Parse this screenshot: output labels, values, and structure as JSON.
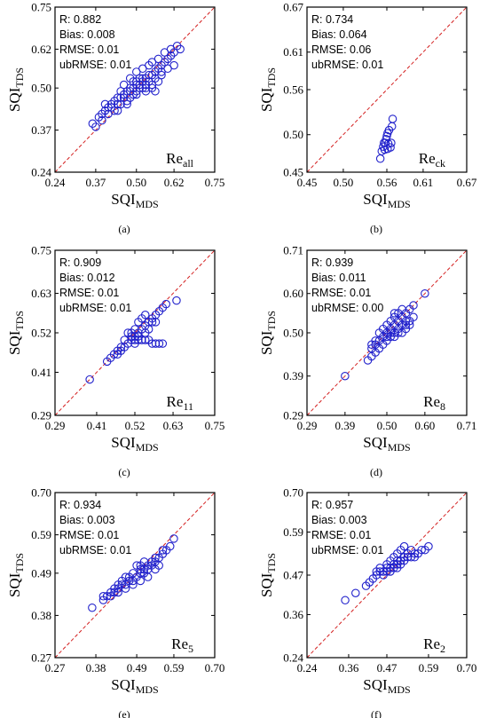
{
  "chart_data": [
    {
      "type": "scatter",
      "panel": "(a)",
      "xlabel": {
        "main": "SQI",
        "sub": "MDS"
      },
      "ylabel": {
        "main": "SQI",
        "sub": "TDS"
      },
      "region": {
        "main": "Re",
        "sub": "all"
      },
      "ticks": [
        0.24,
        0.37,
        0.5,
        0.62,
        0.75
      ],
      "tick_labels": [
        "0.24",
        "0.37",
        "0.50",
        "0.62",
        "0.75"
      ],
      "lim": [
        0.24,
        0.75
      ],
      "stats": [
        "R: 0.882",
        "Bias: 0.008",
        "RMSE: 0.01",
        "ubRMSE: 0.01"
      ],
      "points": [
        [
          0.36,
          0.39
        ],
        [
          0.38,
          0.41
        ],
        [
          0.39,
          0.42
        ],
        [
          0.4,
          0.43
        ],
        [
          0.41,
          0.44
        ],
        [
          0.42,
          0.45
        ],
        [
          0.43,
          0.46
        ],
        [
          0.44,
          0.47
        ],
        [
          0.45,
          0.47
        ],
        [
          0.46,
          0.48
        ],
        [
          0.47,
          0.49
        ],
        [
          0.48,
          0.5
        ],
        [
          0.49,
          0.5
        ],
        [
          0.5,
          0.51
        ],
        [
          0.51,
          0.51
        ],
        [
          0.52,
          0.52
        ],
        [
          0.53,
          0.53
        ],
        [
          0.54,
          0.54
        ],
        [
          0.55,
          0.54
        ],
        [
          0.56,
          0.55
        ],
        [
          0.57,
          0.56
        ],
        [
          0.58,
          0.57
        ],
        [
          0.59,
          0.58
        ],
        [
          0.6,
          0.59
        ],
        [
          0.61,
          0.6
        ],
        [
          0.62,
          0.61
        ],
        [
          0.64,
          0.62
        ],
        [
          0.4,
          0.45
        ],
        [
          0.42,
          0.44
        ],
        [
          0.44,
          0.45
        ],
        [
          0.45,
          0.49
        ],
        [
          0.47,
          0.46
        ],
        [
          0.48,
          0.47
        ],
        [
          0.49,
          0.48
        ],
        [
          0.5,
          0.49
        ],
        [
          0.51,
          0.53
        ],
        [
          0.52,
          0.5
        ],
        [
          0.53,
          0.51
        ],
        [
          0.54,
          0.52
        ],
        [
          0.55,
          0.51
        ],
        [
          0.56,
          0.53
        ],
        [
          0.57,
          0.52
        ],
        [
          0.58,
          0.54
        ],
        [
          0.6,
          0.56
        ],
        [
          0.62,
          0.57
        ],
        [
          0.46,
          0.51
        ],
        [
          0.48,
          0.53
        ],
        [
          0.5,
          0.55
        ],
        [
          0.52,
          0.56
        ],
        [
          0.54,
          0.57
        ],
        [
          0.55,
          0.58
        ],
        [
          0.57,
          0.59
        ],
        [
          0.59,
          0.61
        ],
        [
          0.61,
          0.62
        ],
        [
          0.37,
          0.38
        ],
        [
          0.39,
          0.4
        ],
        [
          0.43,
          0.43
        ],
        [
          0.44,
          0.43
        ],
        [
          0.47,
          0.45
        ],
        [
          0.5,
          0.48
        ],
        [
          0.53,
          0.49
        ],
        [
          0.55,
          0.5
        ],
        [
          0.56,
          0.49
        ],
        [
          0.58,
          0.55
        ],
        [
          0.49,
          0.52
        ],
        [
          0.51,
          0.5
        ],
        [
          0.52,
          0.53
        ],
        [
          0.53,
          0.5
        ],
        [
          0.5,
          0.52
        ],
        [
          0.48,
          0.49
        ],
        [
          0.46,
          0.47
        ],
        [
          0.45,
          0.45
        ],
        [
          0.41,
          0.42
        ],
        [
          0.63,
          0.63
        ]
      ]
    },
    {
      "type": "scatter",
      "panel": "(b)",
      "xlabel": {
        "main": "SQI",
        "sub": "MDS"
      },
      "ylabel": {
        "main": "SQI",
        "sub": "TDS"
      },
      "region": {
        "main": "Re",
        "sub": "ck"
      },
      "ticks": [
        0.45,
        0.5,
        0.56,
        0.61,
        0.67
      ],
      "tick_labels": [
        "0.45",
        "0.50",
        "0.56",
        "0.61",
        "0.67"
      ],
      "lim": [
        0.45,
        0.67
      ],
      "stats": [
        "R: 0.734",
        "Bias: 0.064",
        "RMSE: 0.06",
        "ubRMSE: 0.01"
      ],
      "points": [
        [
          0.551,
          0.468
        ],
        [
          0.553,
          0.478
        ],
        [
          0.555,
          0.484
        ],
        [
          0.557,
          0.48
        ],
        [
          0.558,
          0.489
        ],
        [
          0.559,
          0.494
        ],
        [
          0.56,
          0.498
        ],
        [
          0.561,
          0.502
        ],
        [
          0.562,
          0.488
        ],
        [
          0.563,
          0.506
        ],
        [
          0.565,
          0.483
        ],
        [
          0.566,
          0.489
        ],
        [
          0.567,
          0.511
        ],
        [
          0.568,
          0.521
        ],
        [
          0.556,
          0.489
        ],
        [
          0.561,
          0.481
        ]
      ]
    },
    {
      "type": "scatter",
      "panel": "(c)",
      "xlabel": {
        "main": "SQI",
        "sub": "MDS"
      },
      "ylabel": {
        "main": "SQI",
        "sub": "TDS"
      },
      "region": {
        "main": "Re",
        "sub": "11"
      },
      "ticks": [
        0.29,
        0.41,
        0.52,
        0.63,
        0.75
      ],
      "tick_labels": [
        "0.29",
        "0.41",
        "0.52",
        "0.63",
        "0.75"
      ],
      "lim": [
        0.29,
        0.75
      ],
      "stats": [
        "R: 0.909",
        "Bias: 0.012",
        "RMSE: 0.01",
        "ubRMSE: 0.01"
      ],
      "points": [
        [
          0.39,
          0.39
        ],
        [
          0.44,
          0.44
        ],
        [
          0.45,
          0.45
        ],
        [
          0.46,
          0.46
        ],
        [
          0.47,
          0.47
        ],
        [
          0.48,
          0.48
        ],
        [
          0.49,
          0.48
        ],
        [
          0.5,
          0.49
        ],
        [
          0.51,
          0.5
        ],
        [
          0.52,
          0.51
        ],
        [
          0.53,
          0.52
        ],
        [
          0.54,
          0.53
        ],
        [
          0.55,
          0.54
        ],
        [
          0.56,
          0.55
        ],
        [
          0.57,
          0.56
        ],
        [
          0.58,
          0.57
        ],
        [
          0.59,
          0.58
        ],
        [
          0.6,
          0.59
        ],
        [
          0.61,
          0.6
        ],
        [
          0.64,
          0.61
        ],
        [
          0.52,
          0.49
        ],
        [
          0.53,
          0.5
        ],
        [
          0.54,
          0.5
        ],
        [
          0.55,
          0.5
        ],
        [
          0.56,
          0.5
        ],
        [
          0.57,
          0.49
        ],
        [
          0.58,
          0.49
        ],
        [
          0.59,
          0.49
        ],
        [
          0.6,
          0.49
        ],
        [
          0.51,
          0.52
        ],
        [
          0.52,
          0.53
        ],
        [
          0.53,
          0.55
        ],
        [
          0.54,
          0.56
        ],
        [
          0.55,
          0.57
        ],
        [
          0.5,
          0.52
        ],
        [
          0.49,
          0.5
        ],
        [
          0.51,
          0.51
        ],
        [
          0.52,
          0.5
        ],
        [
          0.53,
          0.51
        ],
        [
          0.48,
          0.47
        ],
        [
          0.47,
          0.46
        ],
        [
          0.55,
          0.52
        ],
        [
          0.56,
          0.53
        ],
        [
          0.57,
          0.55
        ],
        [
          0.58,
          0.55
        ]
      ]
    },
    {
      "type": "scatter",
      "panel": "(d)",
      "xlabel": {
        "main": "SQI",
        "sub": "MDS"
      },
      "ylabel": {
        "main": "SQI",
        "sub": "TDS"
      },
      "region": {
        "main": "Re",
        "sub": "8"
      },
      "ticks": [
        0.29,
        0.39,
        0.5,
        0.6,
        0.71
      ],
      "tick_labels": [
        "0.29",
        "0.39",
        "0.50",
        "0.60",
        "0.71"
      ],
      "lim": [
        0.29,
        0.71
      ],
      "stats": [
        "R: 0.939",
        "Bias: 0.011",
        "RMSE: 0.01",
        "ubRMSE: 0.00"
      ],
      "points": [
        [
          0.39,
          0.39
        ],
        [
          0.45,
          0.43
        ],
        [
          0.46,
          0.44
        ],
        [
          0.46,
          0.46
        ],
        [
          0.47,
          0.45
        ],
        [
          0.47,
          0.47
        ],
        [
          0.48,
          0.46
        ],
        [
          0.48,
          0.48
        ],
        [
          0.49,
          0.47
        ],
        [
          0.49,
          0.49
        ],
        [
          0.5,
          0.48
        ],
        [
          0.5,
          0.5
        ],
        [
          0.51,
          0.49
        ],
        [
          0.51,
          0.51
        ],
        [
          0.52,
          0.5
        ],
        [
          0.52,
          0.52
        ],
        [
          0.53,
          0.51
        ],
        [
          0.53,
          0.53
        ],
        [
          0.54,
          0.52
        ],
        [
          0.54,
          0.54
        ],
        [
          0.55,
          0.52
        ],
        [
          0.55,
          0.55
        ],
        [
          0.56,
          0.53
        ],
        [
          0.56,
          0.56
        ],
        [
          0.57,
          0.54
        ],
        [
          0.57,
          0.57
        ],
        [
          0.6,
          0.6
        ],
        [
          0.51,
          0.53
        ],
        [
          0.52,
          0.54
        ],
        [
          0.53,
          0.55
        ],
        [
          0.5,
          0.52
        ],
        [
          0.49,
          0.51
        ],
        [
          0.48,
          0.5
        ],
        [
          0.52,
          0.49
        ],
        [
          0.54,
          0.5
        ],
        [
          0.55,
          0.51
        ],
        [
          0.56,
          0.52
        ],
        [
          0.53,
          0.5
        ],
        [
          0.51,
          0.5
        ],
        [
          0.47,
          0.48
        ],
        [
          0.46,
          0.47
        ],
        [
          0.5,
          0.49
        ],
        [
          0.55,
          0.53
        ],
        [
          0.54,
          0.56
        ],
        [
          0.52,
          0.55
        ]
      ]
    },
    {
      "type": "scatter",
      "panel": "(e)",
      "xlabel": {
        "main": "SQI",
        "sub": "MDS"
      },
      "ylabel": {
        "main": "SQI",
        "sub": "TDS"
      },
      "region": {
        "main": "Re",
        "sub": "5"
      },
      "ticks": [
        0.27,
        0.38,
        0.49,
        0.59,
        0.7
      ],
      "tick_labels": [
        "0.27",
        "0.38",
        "0.49",
        "0.59",
        "0.70"
      ],
      "lim": [
        0.27,
        0.7
      ],
      "stats": [
        "R: 0.934",
        "Bias: 0.003",
        "RMSE: 0.01",
        "ubRMSE: 0.01"
      ],
      "points": [
        [
          0.37,
          0.4
        ],
        [
          0.4,
          0.42
        ],
        [
          0.41,
          0.43
        ],
        [
          0.42,
          0.44
        ],
        [
          0.43,
          0.44
        ],
        [
          0.44,
          0.45
        ],
        [
          0.45,
          0.46
        ],
        [
          0.46,
          0.46
        ],
        [
          0.47,
          0.47
        ],
        [
          0.48,
          0.47
        ],
        [
          0.49,
          0.48
        ],
        [
          0.5,
          0.49
        ],
        [
          0.51,
          0.5
        ],
        [
          0.52,
          0.51
        ],
        [
          0.53,
          0.52
        ],
        [
          0.54,
          0.52
        ],
        [
          0.55,
          0.53
        ],
        [
          0.56,
          0.54
        ],
        [
          0.58,
          0.56
        ],
        [
          0.59,
          0.58
        ],
        [
          0.4,
          0.43
        ],
        [
          0.42,
          0.43
        ],
        [
          0.44,
          0.44
        ],
        [
          0.46,
          0.45
        ],
        [
          0.48,
          0.46
        ],
        [
          0.5,
          0.47
        ],
        [
          0.52,
          0.48
        ],
        [
          0.54,
          0.5
        ],
        [
          0.55,
          0.51
        ],
        [
          0.49,
          0.51
        ],
        [
          0.5,
          0.51
        ],
        [
          0.51,
          0.52
        ],
        [
          0.52,
          0.5
        ],
        [
          0.53,
          0.51
        ],
        [
          0.47,
          0.48
        ],
        [
          0.45,
          0.47
        ],
        [
          0.43,
          0.45
        ],
        [
          0.54,
          0.53
        ],
        [
          0.56,
          0.55
        ],
        [
          0.57,
          0.55
        ],
        [
          0.48,
          0.49
        ],
        [
          0.46,
          0.48
        ],
        [
          0.5,
          0.5
        ],
        [
          0.51,
          0.49
        ],
        [
          0.44,
          0.46
        ]
      ]
    },
    {
      "type": "scatter",
      "panel": "(f)",
      "xlabel": {
        "main": "SQI",
        "sub": "MDS"
      },
      "ylabel": {
        "main": "SQI",
        "sub": "TDS"
      },
      "region": {
        "main": "Re",
        "sub": "2"
      },
      "ticks": [
        0.24,
        0.36,
        0.47,
        0.59,
        0.7
      ],
      "tick_labels": [
        "0.24",
        "0.36",
        "0.47",
        "0.59",
        "0.70"
      ],
      "lim": [
        0.24,
        0.7
      ],
      "stats": [
        "R: 0.957",
        "Bias: 0.003",
        "RMSE: 0.01",
        "ubRMSE: 0.01"
      ],
      "points": [
        [
          0.35,
          0.4
        ],
        [
          0.38,
          0.42
        ],
        [
          0.41,
          0.44
        ],
        [
          0.42,
          0.45
        ],
        [
          0.43,
          0.46
        ],
        [
          0.44,
          0.47
        ],
        [
          0.45,
          0.48
        ],
        [
          0.46,
          0.48
        ],
        [
          0.47,
          0.49
        ],
        [
          0.48,
          0.49
        ],
        [
          0.49,
          0.5
        ],
        [
          0.5,
          0.5
        ],
        [
          0.51,
          0.51
        ],
        [
          0.52,
          0.51
        ],
        [
          0.53,
          0.52
        ],
        [
          0.54,
          0.52
        ],
        [
          0.55,
          0.53
        ],
        [
          0.56,
          0.53
        ],
        [
          0.57,
          0.54
        ],
        [
          0.58,
          0.54
        ],
        [
          0.59,
          0.55
        ],
        [
          0.47,
          0.5
        ],
        [
          0.48,
          0.51
        ],
        [
          0.49,
          0.52
        ],
        [
          0.5,
          0.53
        ],
        [
          0.51,
          0.54
        ],
        [
          0.52,
          0.55
        ],
        [
          0.5,
          0.49
        ],
        [
          0.51,
          0.5
        ],
        [
          0.46,
          0.47
        ],
        [
          0.45,
          0.49
        ],
        [
          0.44,
          0.48
        ],
        [
          0.53,
          0.53
        ],
        [
          0.54,
          0.54
        ],
        [
          0.49,
          0.49
        ],
        [
          0.48,
          0.48
        ],
        [
          0.52,
          0.52
        ],
        [
          0.55,
          0.52
        ],
        [
          0.47,
          0.48
        ],
        [
          0.5,
          0.51
        ]
      ]
    }
  ],
  "colors": {
    "marker": "#2222cc",
    "identity_line": "#d42020",
    "axis": "#000000"
  }
}
